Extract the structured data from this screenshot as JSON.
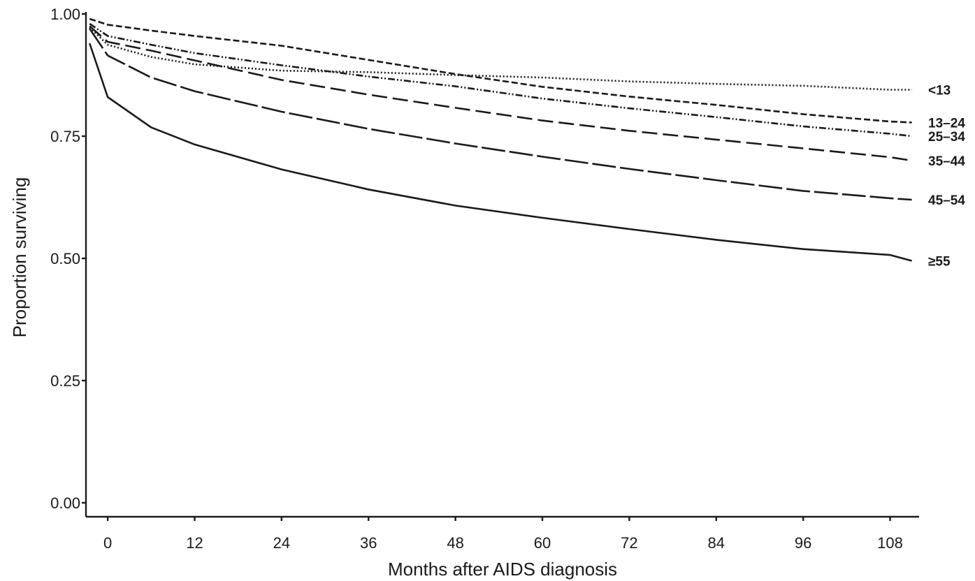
{
  "chart_data": {
    "type": "line",
    "title": "",
    "xlabel": "Months after AIDS diagnosis",
    "ylabel": "Proportion surviving",
    "xlim": [
      -3,
      112
    ],
    "ylim": [
      0,
      1
    ],
    "x_ticks": [
      0,
      12,
      24,
      36,
      48,
      60,
      72,
      84,
      96,
      108
    ],
    "x_tick_labels": [
      "0",
      "12",
      "24",
      "36",
      "48",
      "60",
      "72",
      "84",
      "96",
      "108"
    ],
    "y_ticks": [
      0,
      0.25,
      0.5,
      0.75,
      1.0
    ],
    "y_tick_labels": [
      "0.00",
      "0.25",
      "0.50",
      "0.75",
      "1.00"
    ],
    "grid": false,
    "legend": "series labels at right end of lines",
    "x": [
      -2.5,
      0,
      6,
      12,
      24,
      36,
      48,
      60,
      72,
      84,
      96,
      108,
      111
    ],
    "series": [
      {
        "name": "<13",
        "dash": "dotted",
        "values": [
          0.972,
          0.937,
          0.912,
          0.897,
          0.884,
          0.881,
          0.875,
          0.87,
          0.862,
          0.857,
          0.853,
          0.845,
          0.845
        ]
      },
      {
        "name": "13–24",
        "dash": "short-dash",
        "values": [
          0.99,
          0.978,
          0.966,
          0.955,
          0.935,
          0.906,
          0.877,
          0.851,
          0.831,
          0.814,
          0.795,
          0.78,
          0.778
        ]
      },
      {
        "name": "25–34",
        "dash": "dash-dot-dot",
        "values": [
          0.98,
          0.955,
          0.937,
          0.92,
          0.895,
          0.872,
          0.852,
          0.827,
          0.807,
          0.789,
          0.77,
          0.755,
          0.75
        ]
      },
      {
        "name": "35–44",
        "dash": "long-dash",
        "values": [
          0.975,
          0.943,
          0.925,
          0.905,
          0.865,
          0.835,
          0.808,
          0.782,
          0.761,
          0.743,
          0.725,
          0.707,
          0.7
        ]
      },
      {
        "name": "45–54",
        "dash": "very-long-dash",
        "values": [
          0.97,
          0.915,
          0.87,
          0.842,
          0.8,
          0.765,
          0.735,
          0.708,
          0.683,
          0.66,
          0.638,
          0.623,
          0.62
        ]
      },
      {
        "name": "≥55",
        "dash": "solid",
        "values": [
          0.94,
          0.83,
          0.768,
          0.733,
          0.682,
          0.641,
          0.608,
          0.583,
          0.56,
          0.538,
          0.519,
          0.507,
          0.495
        ]
      }
    ]
  }
}
